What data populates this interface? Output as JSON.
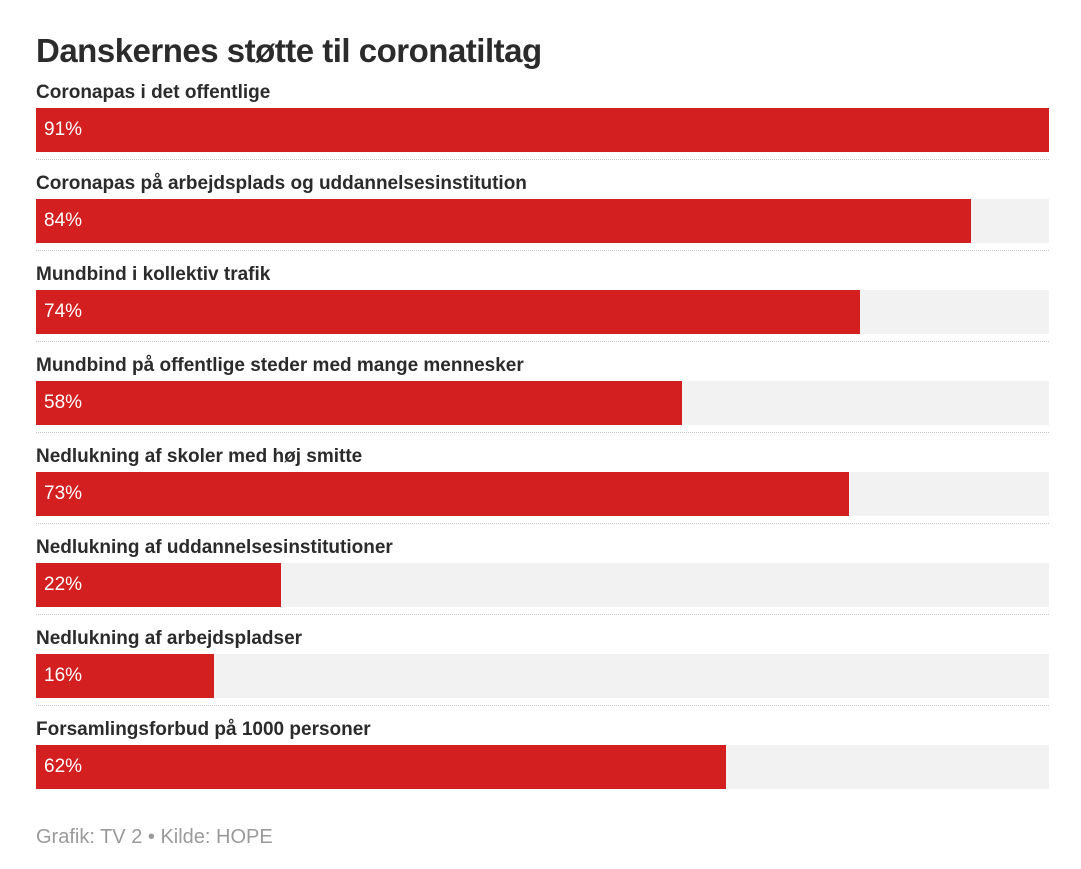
{
  "chart_data": {
    "type": "bar",
    "orientation": "horizontal",
    "title": "Danskernes støtte til coronatiltag",
    "categories": [
      "Coronapas i det offentlige",
      "Coronapas på arbejdsplads og uddannelsesinstitution",
      "Mundbind i kollektiv trafik",
      "Mundbind på offentlige steder med mange mennesker",
      "Nedlukning af skoler med høj smitte",
      "Nedlukning af uddannelsesinstitutioner",
      "Nedlukning af arbejdspladser",
      "Forsamlingsforbud på 1000 personer"
    ],
    "values": [
      91,
      84,
      74,
      58,
      73,
      22,
      16,
      62
    ],
    "value_labels": [
      "91%",
      "84%",
      "74%",
      "58%",
      "73%",
      "22%",
      "16%",
      "62%"
    ],
    "xlim": [
      0,
      91
    ],
    "bar_color": "#d31f20",
    "track_color": "#f2f2f2",
    "grid": false,
    "legend": "none"
  },
  "footer": {
    "source": "Grafik: TV 2 • Kilde: HOPE"
  }
}
